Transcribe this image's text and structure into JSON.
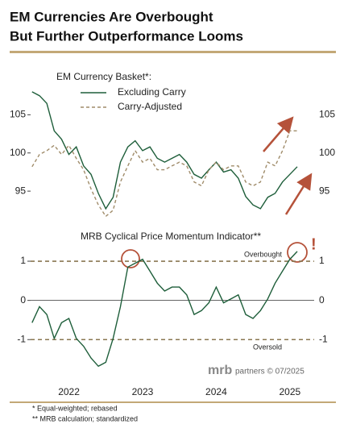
{
  "title": [
    "EM Currencies Are Overbought",
    "But Further Outperformance Looms"
  ],
  "source": {
    "logo": "mrb",
    "text": "partners © 07/2025"
  },
  "footnotes": [
    "*  Equal-weighted; rebased",
    "** MRB calculation; standardized"
  ],
  "chart_data": [
    {
      "type": "line",
      "legend_title": "EM Currency Basket*:",
      "legend": "top-left",
      "x": [
        2021.5,
        2021.6,
        2021.7,
        2021.8,
        2021.9,
        2022.0,
        2022.1,
        2022.2,
        2022.3,
        2022.4,
        2022.5,
        2022.6,
        2022.7,
        2022.8,
        2022.9,
        2023.0,
        2023.1,
        2023.2,
        2023.3,
        2023.4,
        2023.5,
        2023.6,
        2023.7,
        2023.8,
        2023.9,
        2024.0,
        2024.1,
        2024.2,
        2024.3,
        2024.4,
        2024.5,
        2024.6,
        2024.7,
        2024.8,
        2024.9,
        2025.0,
        2025.1
      ],
      "xlim": [
        2021.48,
        2025.33
      ],
      "ylim": [
        91,
        110
      ],
      "yticks": [
        95,
        100,
        105
      ],
      "series": [
        {
          "name": "Excluding Carry",
          "color": "#1e5e3a",
          "dash": false,
          "values": [
            108,
            107.5,
            106.5,
            102.9,
            101.8,
            99.8,
            100.8,
            98.3,
            97.2,
            94.7,
            92.7,
            94.2,
            98.8,
            100.8,
            101.6,
            100.3,
            100.8,
            99.3,
            98.8,
            99.3,
            99.8,
            98.8,
            97.2,
            96.7,
            97.8,
            98.8,
            97.5,
            97.8,
            96.7,
            94.3,
            93.2,
            92.7,
            94.2,
            94.7,
            96.2,
            97.2,
            98.2
          ]
        },
        {
          "name": "Carry-Adjusted",
          "color": "#a08c6a",
          "dash": true,
          "values": [
            98.2,
            99.8,
            100.3,
            101,
            99.8,
            101,
            99.3,
            97.8,
            95.3,
            93.2,
            91.7,
            92.5,
            96.2,
            98.3,
            100.3,
            98.8,
            99.3,
            97.8,
            97.8,
            98.3,
            98.8,
            98.3,
            96.2,
            95.7,
            97.8,
            98.8,
            97.8,
            98.3,
            98.3,
            96.2,
            95.7,
            96.2,
            98.8,
            98.3,
            100.3,
            102.9,
            102.9
          ]
        }
      ]
    },
    {
      "type": "line",
      "title": "MRB Cyclical Price Momentum Indicator**",
      "x": [
        2021.5,
        2021.6,
        2021.7,
        2021.8,
        2021.9,
        2022.0,
        2022.1,
        2022.2,
        2022.3,
        2022.4,
        2022.5,
        2022.6,
        2022.7,
        2022.8,
        2022.9,
        2023.0,
        2023.1,
        2023.2,
        2023.3,
        2023.4,
        2023.5,
        2023.6,
        2023.7,
        2023.8,
        2023.9,
        2024.0,
        2024.1,
        2024.2,
        2024.3,
        2024.4,
        2024.5,
        2024.6,
        2024.7,
        2024.8,
        2024.9,
        2025.0,
        2025.1
      ],
      "xlim": [
        2021.48,
        2025.33
      ],
      "xticks": [
        2022,
        2023,
        2024,
        2025
      ],
      "ylim": [
        -1.9,
        1.7
      ],
      "yticks": [
        -1,
        0,
        1
      ],
      "reference_lines": [
        {
          "value": 1,
          "label": "Overbought"
        },
        {
          "value": -1,
          "label": "Oversold"
        }
      ],
      "annotation": "!",
      "series": [
        {
          "name": "MRB Cyclical Price Momentum Indicator",
          "color": "#1e5e3a",
          "dash": false,
          "values": [
            -0.57,
            -0.16,
            -0.36,
            -0.97,
            -0.57,
            -0.46,
            -0.97,
            -1.17,
            -1.47,
            -1.68,
            -1.58,
            -0.97,
            -0.16,
            0.85,
            0.95,
            1.05,
            0.75,
            0.44,
            0.24,
            0.34,
            0.34,
            0.14,
            -0.36,
            -0.26,
            -0.06,
            0.34,
            -0.06,
            0.04,
            0.14,
            -0.36,
            -0.46,
            -0.26,
            0.04,
            0.44,
            0.75,
            1.05,
            1.25
          ]
        }
      ]
    }
  ]
}
